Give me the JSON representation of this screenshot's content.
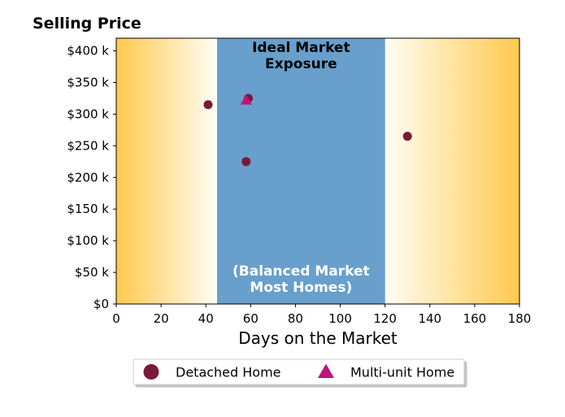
{
  "chart_data": {
    "type": "scatter",
    "title": "Selling Price",
    "xlabel": "Days on the Market",
    "ylabel": "",
    "xlim": [
      0,
      180
    ],
    "ylim": [
      0,
      420000
    ],
    "x_ticks": [
      0,
      20,
      40,
      60,
      80,
      100,
      120,
      140,
      160,
      180
    ],
    "x_tick_labels": [
      "0",
      "20",
      "40",
      "60",
      "80",
      "100",
      "120",
      "140",
      "160",
      "180"
    ],
    "y_ticks": [
      0,
      50000,
      100000,
      150000,
      200000,
      250000,
      300000,
      350000,
      400000
    ],
    "y_tick_labels": [
      "$0",
      "$50 k",
      "$100 k",
      "$150 k",
      "$200 k",
      "$250 k",
      "$300 k",
      "$350 k",
      "$400 k"
    ],
    "grid": false,
    "legend_position": "bottom-center",
    "regions": [
      {
        "x_range": [
          45,
          120
        ],
        "color": "#689fcc",
        "label_top": [
          "Ideal Market",
          "Exposure"
        ],
        "label_top_color": "#000000",
        "label_bottom": [
          "(Balanced Market",
          "Most Homes)"
        ],
        "label_bottom_color": "#ffffff"
      }
    ],
    "background_gradient": {
      "edge_color": "#ffc94d",
      "center_color": "#fffdf5"
    },
    "series": [
      {
        "name": "Detached Home",
        "marker": "circle",
        "color": "#7a1a3a",
        "points": [
          {
            "x": 41,
            "y": 315000
          },
          {
            "x": 59,
            "y": 325000
          },
          {
            "x": 58,
            "y": 225000
          },
          {
            "x": 130,
            "y": 265000
          }
        ]
      },
      {
        "name": "Multi-unit Home",
        "marker": "triangle",
        "color": "#c0157a",
        "points": [
          {
            "x": 58,
            "y": 321000
          }
        ]
      }
    ]
  }
}
